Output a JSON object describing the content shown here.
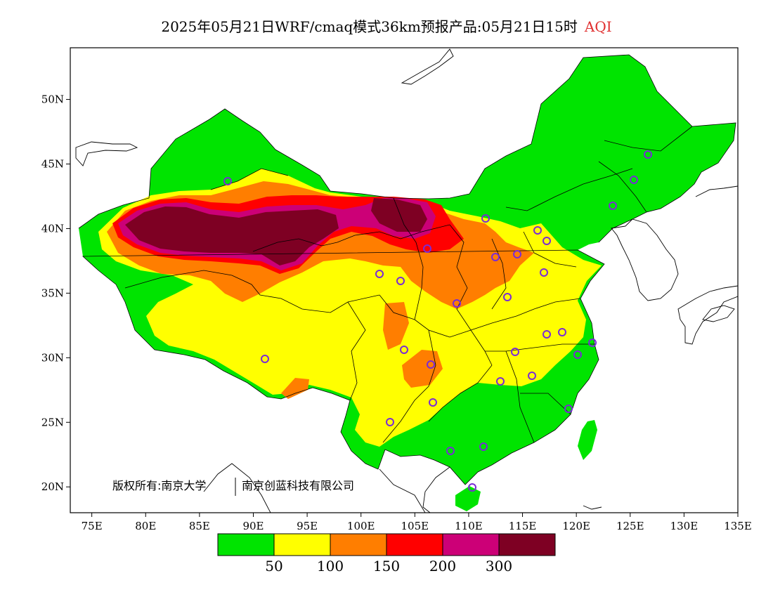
{
  "title": {
    "main": "2025年05月21日WRF/cmaq模式36km预报产品:05月21日15时",
    "variable": "AQI"
  },
  "axes": {
    "lat_labels": [
      "50N",
      "45N",
      "40N",
      "35N",
      "30N",
      "25N",
      "20N"
    ],
    "lon_labels": [
      "75E",
      "80E",
      "85E",
      "90E",
      "95E",
      "100E",
      "105E",
      "110E",
      "115E",
      "120E",
      "125E",
      "130E",
      "135E"
    ]
  },
  "map_extent": {
    "lon_min": 73,
    "lon_max": 135,
    "lat_min": 18,
    "lat_max": 54
  },
  "copyright": {
    "part1": "版权所有:南京大学",
    "part2": "南京创蓝科技有限公司"
  },
  "legend": {
    "colors": [
      "#00e400",
      "#ffff00",
      "#ff7e00",
      "#ff0000",
      "#cc0077",
      "#7e0023"
    ],
    "labels": [
      "50",
      "100",
      "150",
      "200",
      "300"
    ]
  },
  "colors": {
    "good": "#00e400",
    "moderate": "#ffff00",
    "usg": "#ff7e00",
    "unhealthy": "#ff0000",
    "very_unhealthy": "#cc0077",
    "hazardous": "#7e0023",
    "station_marker": "#7a2bd6"
  }
}
